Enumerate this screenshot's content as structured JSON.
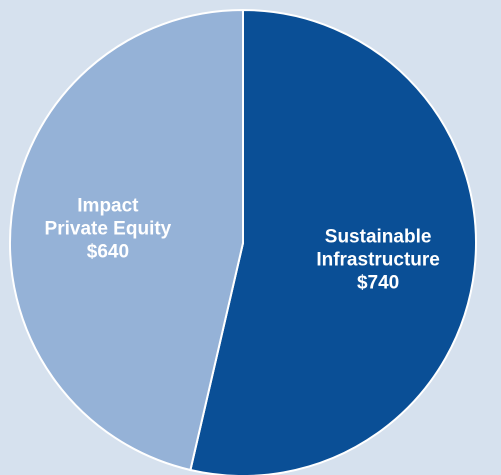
{
  "chart_data": {
    "type": "pie",
    "slices": [
      {
        "label_lines": [
          "Sustainable",
          "Infrastructure"
        ],
        "value_label": "$740",
        "value": 740,
        "color": "#0a4f96"
      },
      {
        "label_lines": [
          "Impact",
          "Private Equity"
        ],
        "value_label": "$640",
        "value": 640,
        "color": "#95b2d7"
      }
    ],
    "start": "12 o'clock",
    "direction": "clockwise",
    "background_color": "#d6e1ee"
  }
}
